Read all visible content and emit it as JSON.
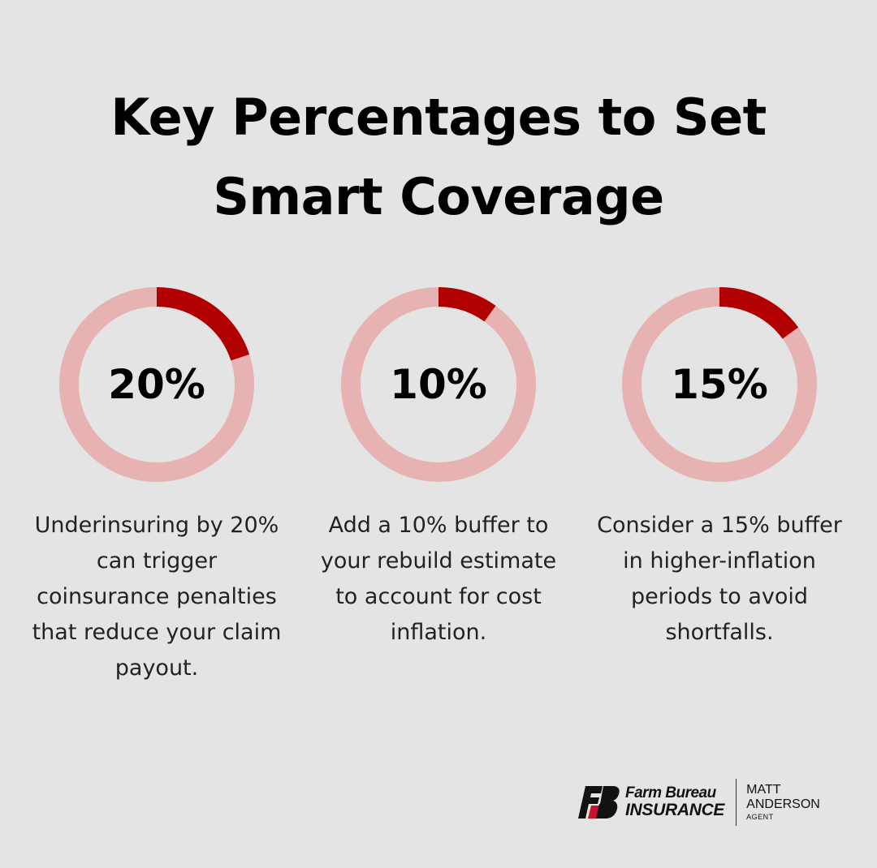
{
  "page": {
    "title_line1": "Key Percentages to Set",
    "title_line2": "Smart Coverage"
  },
  "stats": [
    {
      "label": "20%",
      "percent": 20,
      "description": "Underinsuring by 20% can trigger coinsurance penalties that reduce your claim payout."
    },
    {
      "label": "10%",
      "percent": 10,
      "description": "Add a 10% buffer to your rebuild estimate to account for cost inflation."
    },
    {
      "label": "15%",
      "percent": 15,
      "description": "Consider a 15% buffer in higher-inflation periods to avoid shortfalls."
    }
  ],
  "colors": {
    "background": "#e3e4e3",
    "ring_track": "#e6b3b2",
    "ring_fill": "#b00000",
    "logo_red": "#c8102e"
  },
  "footer": {
    "brand_line1": "Farm Bureau",
    "brand_line2": "INSURANCE",
    "agent_first": "MATT",
    "agent_last": "ANDERSON",
    "agent_role": "AGENT"
  }
}
